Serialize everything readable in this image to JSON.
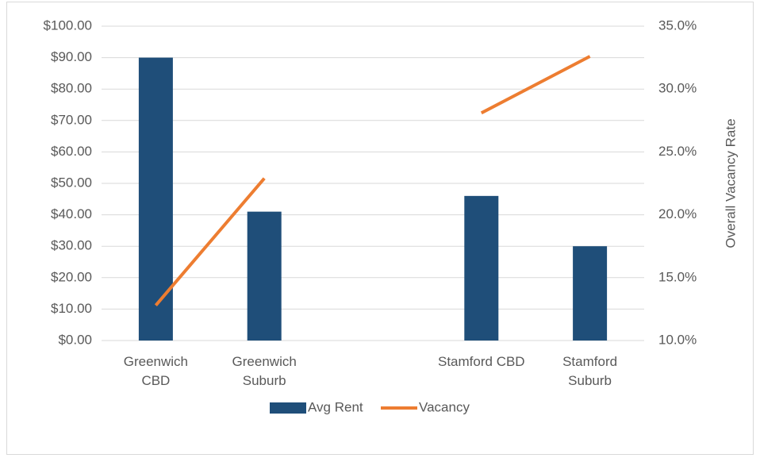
{
  "chart_data": {
    "type": "bar",
    "categories": [
      "Greenwich CBD",
      "Greenwich Suburb",
      null,
      "Stamford CBD",
      "Stamford Suburb"
    ],
    "series": [
      {
        "name": "Avg Rent",
        "type": "bar",
        "color": "#1f4e79",
        "values": [
          90,
          41,
          null,
          46,
          30
        ]
      },
      {
        "name": "Vacancy",
        "type": "line",
        "axis": "y2",
        "color": "#ed7d31",
        "values": [
          12.8,
          22.9,
          null,
          28.1,
          32.6
        ]
      }
    ],
    "ylim": [
      0,
      100
    ],
    "yticks": [
      {
        "value": 0,
        "label": "$0.00"
      },
      {
        "value": 10,
        "label": "$10.00"
      },
      {
        "value": 20,
        "label": "$20.00"
      },
      {
        "value": 30,
        "label": "$30.00"
      },
      {
        "value": 40,
        "label": "$40.00"
      },
      {
        "value": 50,
        "label": "$50.00"
      },
      {
        "value": 60,
        "label": "$60.00"
      },
      {
        "value": 70,
        "label": "$70.00"
      },
      {
        "value": 80,
        "label": "$80.00"
      },
      {
        "value": 90,
        "label": "$90.00"
      },
      {
        "value": 100,
        "label": "$100.00"
      }
    ],
    "y2lim": [
      10,
      35
    ],
    "y2ticks": [
      {
        "value": 10,
        "label": "10.0%"
      },
      {
        "value": 15,
        "label": "15.0%"
      },
      {
        "value": 20,
        "label": "20.0%"
      },
      {
        "value": 25,
        "label": "25.0%"
      },
      {
        "value": 30,
        "label": "30.0%"
      },
      {
        "value": 35,
        "label": "35.0%"
      }
    ],
    "y2label": "Overall Vacancy Rate",
    "grid": true,
    "legend": "bottom"
  }
}
